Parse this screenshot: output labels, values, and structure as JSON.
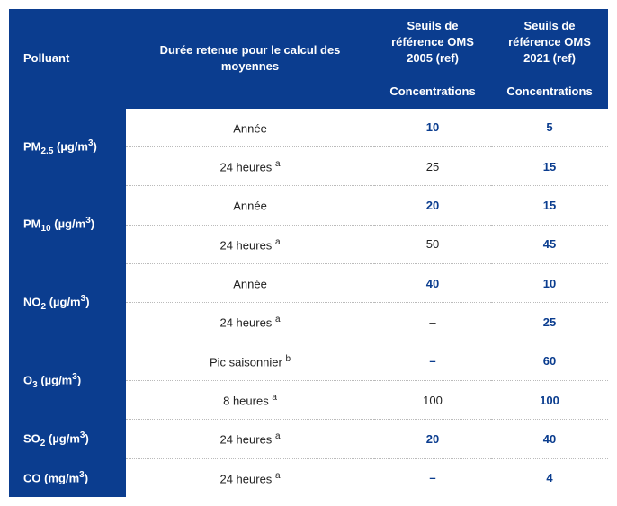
{
  "headers": {
    "pollutant": "Polluant",
    "duration": "Durée retenue pour le calcul des moyennes",
    "ref2005_title": "Seuils de référence OMS 2005 (ref)",
    "ref2021_title": "Seuils de référence OMS 2021 (ref)",
    "concentrations": "Concentrations"
  },
  "pollutants": [
    {
      "name": "PM",
      "sub": "2.5",
      "unit": "(µg/m",
      "unit_sup": "3",
      "unit_close": ")"
    },
    {
      "name": "PM",
      "sub": "10",
      "unit": "(µg/m",
      "unit_sup": "3",
      "unit_close": ")"
    },
    {
      "name": "NO",
      "sub": "2",
      "unit": "(µg/m",
      "unit_sup": "3",
      "unit_close": ")"
    },
    {
      "name": "O",
      "sub": "3",
      "unit": "(µg/m",
      "unit_sup": "3",
      "unit_close": ")"
    },
    {
      "name": "SO",
      "sub": "2",
      "unit": "(µg/m",
      "unit_sup": "3",
      "unit_close": ")"
    },
    {
      "name": "CO",
      "sub": "",
      "unit": "(mg/m",
      "unit_sup": "3",
      "unit_close": ")"
    }
  ],
  "rows": {
    "pm25_1": {
      "duration": "Année",
      "note": "",
      "c2005": "10",
      "c2021": "5"
    },
    "pm25_2": {
      "duration": "24 heures",
      "note": "a",
      "c2005": "25",
      "c2021": "15"
    },
    "pm10_1": {
      "duration": "Année",
      "note": "",
      "c2005": "20",
      "c2021": "15"
    },
    "pm10_2": {
      "duration": "24 heures",
      "note": "a",
      "c2005": "50",
      "c2021": "45"
    },
    "no2_1": {
      "duration": "Année",
      "note": "",
      "c2005": "40",
      "c2021": "10"
    },
    "no2_2": {
      "duration": "24 heures",
      "note": "a",
      "c2005": "–",
      "c2021": "25"
    },
    "o3_1": {
      "duration": "Pic saisonnier",
      "note": "b",
      "c2005": "–",
      "c2021": "60"
    },
    "o3_2": {
      "duration": "8 heures",
      "note": "a",
      "c2005": "100",
      "c2021": "100"
    },
    "so2_1": {
      "duration": "24 heures",
      "note": "a",
      "c2005": "20",
      "c2021": "40"
    },
    "co_1": {
      "duration": "24 heures",
      "note": "a",
      "c2005": "–",
      "c2021": "4"
    }
  },
  "style": {
    "header_bg": "#0b3d8f",
    "header_color": "#ffffff",
    "value_color": "#0b3d8f",
    "border_color": "#bbbbbb"
  }
}
